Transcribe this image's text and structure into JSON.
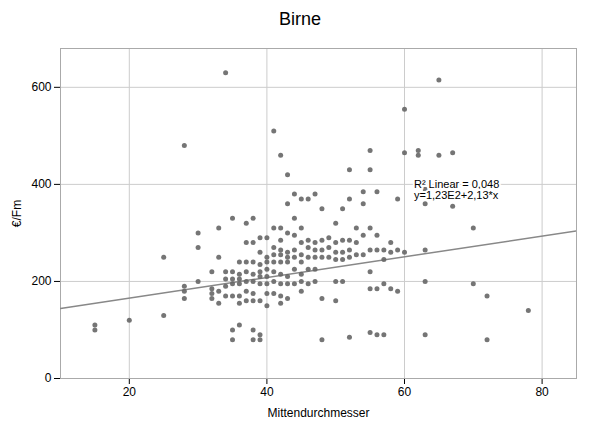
{
  "chart_data": {
    "type": "scatter",
    "title": "Birne",
    "xlabel": "Mittendurchmesser",
    "ylabel": "€/Fm",
    "xlim": [
      10,
      85
    ],
    "ylim": [
      0,
      680
    ],
    "xticks": [
      20,
      40,
      60,
      80
    ],
    "yticks": [
      0,
      200,
      400,
      600
    ],
    "grid": true,
    "color": "#666666",
    "x": [
      15,
      15,
      20,
      25,
      25,
      28,
      28,
      28,
      28,
      30,
      30,
      30,
      32,
      32,
      32,
      32,
      33,
      33,
      33,
      33,
      34,
      34,
      34,
      34,
      34,
      35,
      35,
      35,
      35,
      35,
      35,
      35,
      36,
      36,
      36,
      36,
      36,
      36,
      36,
      37,
      37,
      37,
      37,
      37,
      37,
      37,
      38,
      38,
      38,
      38,
      38,
      38,
      38,
      38,
      38,
      39,
      39,
      39,
      39,
      39,
      39,
      39,
      39,
      39,
      40,
      40,
      40,
      40,
      40,
      40,
      40,
      40,
      41,
      41,
      41,
      41,
      41,
      41,
      41,
      41,
      42,
      42,
      42,
      42,
      42,
      42,
      42,
      42,
      42,
      42,
      43,
      43,
      43,
      43,
      43,
      43,
      43,
      43,
      43,
      44,
      44,
      44,
      44,
      44,
      44,
      44,
      45,
      45,
      45,
      45,
      45,
      45,
      45,
      45,
      46,
      46,
      46,
      46,
      46,
      46,
      47,
      47,
      47,
      47,
      47,
      47,
      48,
      48,
      48,
      48,
      48,
      48,
      49,
      49,
      49,
      50,
      50,
      50,
      50,
      50,
      50,
      51,
      51,
      51,
      51,
      51,
      52,
      52,
      52,
      52,
      52,
      52,
      53,
      53,
      53,
      54,
      54,
      54,
      54,
      55,
      55,
      55,
      55,
      55,
      55,
      55,
      56,
      56,
      56,
      56,
      56,
      57,
      57,
      57,
      57,
      58,
      58,
      58,
      59,
      59,
      59,
      60,
      60,
      60,
      62,
      62,
      63,
      63,
      63,
      63,
      63,
      65,
      65,
      65,
      67,
      67,
      70,
      70,
      72,
      72,
      78
    ],
    "values": [
      110,
      100,
      120,
      250,
      130,
      480,
      190,
      180,
      165,
      300,
      270,
      200,
      220,
      185,
      175,
      165,
      310,
      250,
      180,
      155,
      630,
      220,
      205,
      190,
      170,
      330,
      220,
      205,
      195,
      170,
      100,
      80,
      240,
      215,
      205,
      195,
      170,
      155,
      110,
      320,
      280,
      240,
      220,
      200,
      180,
      160,
      330,
      280,
      240,
      215,
      200,
      175,
      160,
      100,
      80,
      290,
      260,
      235,
      220,
      210,
      195,
      160,
      90,
      80,
      290,
      250,
      240,
      225,
      210,
      195,
      175,
      150,
      510,
      310,
      270,
      255,
      240,
      220,
      200,
      175,
      460,
      310,
      285,
      265,
      255,
      240,
      215,
      195,
      170,
      155,
      420,
      360,
      300,
      260,
      250,
      240,
      210,
      195,
      165,
      380,
      330,
      295,
      265,
      250,
      225,
      195,
      370,
      310,
      280,
      255,
      240,
      215,
      200,
      180,
      370,
      285,
      270,
      250,
      225,
      195,
      380,
      280,
      265,
      250,
      225,
      200,
      350,
      285,
      265,
      250,
      165,
      80,
      290,
      270,
      250,
      320,
      280,
      260,
      245,
      200,
      160,
      350,
      285,
      260,
      245,
      200,
      430,
      370,
      285,
      265,
      250,
      85,
      310,
      280,
      255,
      385,
      360,
      295,
      255,
      470,
      430,
      310,
      265,
      220,
      185,
      95,
      385,
      295,
      265,
      185,
      90,
      265,
      245,
      195,
      90,
      280,
      260,
      185,
      370,
      265,
      180,
      555,
      465,
      260,
      470,
      460,
      390,
      360,
      265,
      200,
      90,
      615,
      460,
      390,
      465,
      355,
      310,
      195,
      170,
      80,
      140
    ],
    "regression_line": {
      "x": [
        10,
        85
      ],
      "y": [
        144.3,
        304.05
      ],
      "color": "#888888"
    },
    "annotations": [
      "R² Linear = 0,048",
      "y=1,23E2+2,13*x"
    ]
  }
}
